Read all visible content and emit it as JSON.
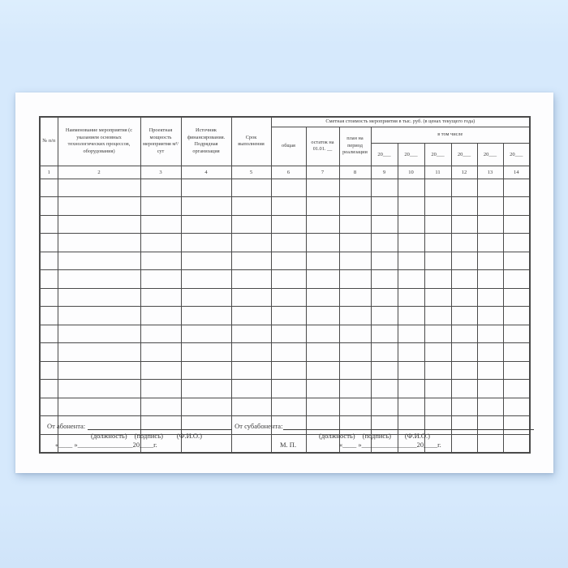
{
  "colors": {
    "background": "#d6e9fc",
    "paper": "#fdfdfe",
    "table_border": "#4a4a4a",
    "text": "#3b3b3b"
  },
  "table": {
    "columns": [
      {
        "label": "№ п/п"
      },
      {
        "label": "Наименование мероприятия (с указанием основных технологических процессов, оборудования)"
      },
      {
        "label": "Проектная мощность мероприятия м³/сут"
      },
      {
        "label": "Источник финансирования. Подрядная организация"
      },
      {
        "label": "Срок выполнения"
      }
    ],
    "cost_group": {
      "title": "Сметная стоимость мероприятия в тыс. руб. (в ценах текущего года)",
      "columns": [
        "общая",
        "остаток на 01.01. __",
        "план на период реализации"
      ],
      "including_label": "в том числе"
    },
    "year_label": "20___",
    "column_numbers": [
      "1",
      "2",
      "3",
      "4",
      "5",
      "6",
      "7",
      "8",
      "9",
      "10",
      "11",
      "12",
      "13",
      "14"
    ],
    "body_row_count": 15,
    "column_count": 14
  },
  "footer": {
    "from_abonent_label": "От абонента:",
    "from_subabonent_label": "От субабонента:",
    "caption_tokens": [
      "(должность)",
      "(подпись)",
      "(Ф.И.О.)"
    ],
    "date_line": "«____ »________________20____г.",
    "stamp_label": "М. П."
  }
}
